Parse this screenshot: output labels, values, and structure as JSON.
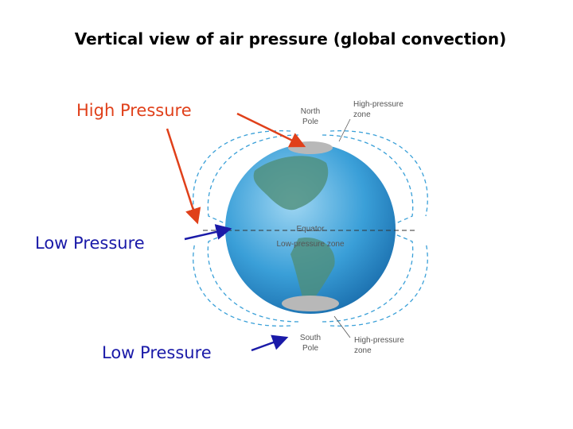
{
  "title": "Vertical view of air pressure (global convection)",
  "callouts": [
    {
      "label": "High Pressure"
    },
    {
      "label": "Low Pressure"
    },
    {
      "label": "Low Pressure"
    }
  ],
  "diagram": {
    "north_pole": [
      "North",
      "Pole"
    ],
    "north_zone": [
      "High-pressure",
      "zone"
    ],
    "equator": "Equator",
    "equator_zone": "Low-pressure zone",
    "south_pole": [
      "South",
      "Pole"
    ],
    "south_zone": [
      "High-pressure",
      "zone"
    ]
  }
}
